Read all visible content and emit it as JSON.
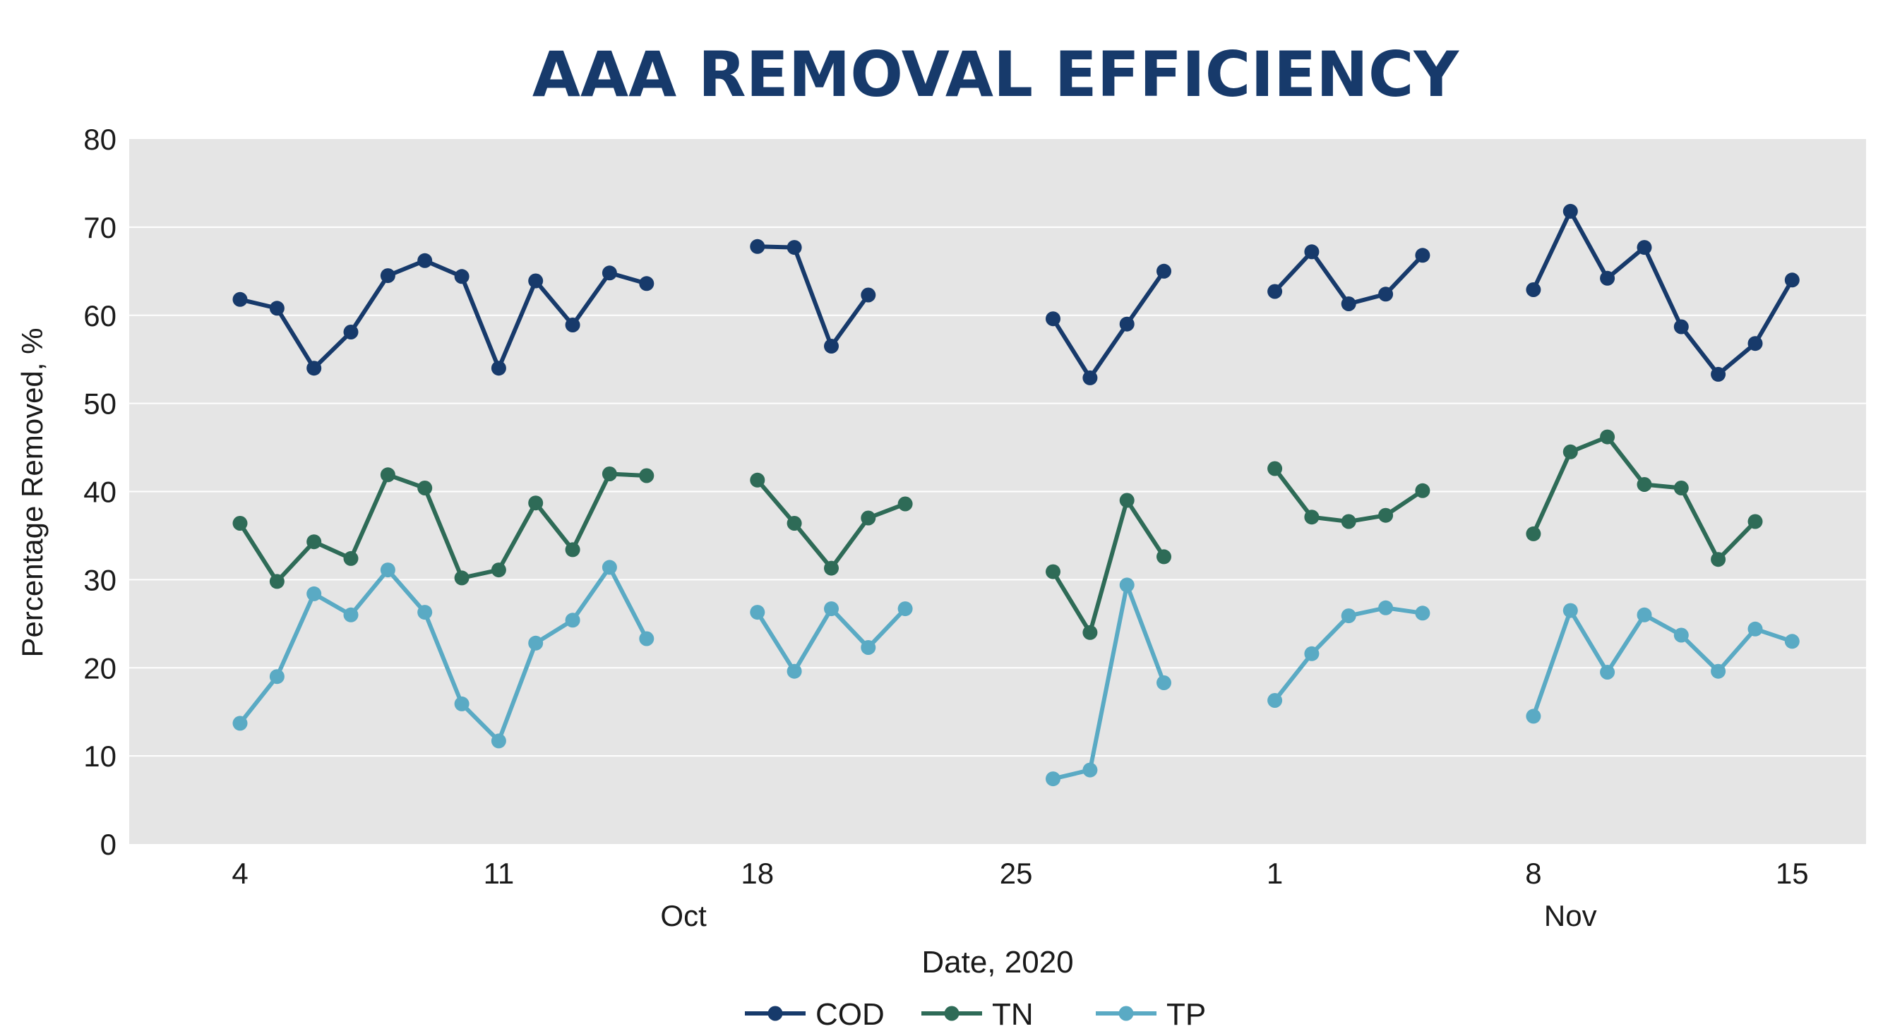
{
  "chart_data": {
    "type": "line",
    "title": "AAA REMOVAL EFFICIENCY",
    "xlabel": "Date, 2020",
    "ylabel": "Percentage Removed, %",
    "ylim": [
      0,
      80
    ],
    "yticks": [
      0,
      10,
      20,
      30,
      40,
      50,
      60,
      70,
      80
    ],
    "xlim": [
      "2020-10-01",
      "2020-11-17"
    ],
    "xticks": [
      {
        "date": "2020-10-04",
        "label": "4"
      },
      {
        "date": "2020-10-11",
        "label": "11"
      },
      {
        "date": "2020-10-18",
        "label": "18"
      },
      {
        "date": "2020-10-25",
        "label": "25"
      },
      {
        "date": "2020-11-01",
        "label": "1"
      },
      {
        "date": "2020-11-08",
        "label": "8"
      },
      {
        "date": "2020-11-15",
        "label": "15"
      }
    ],
    "month_labels": [
      {
        "date": "2020-10-16",
        "label": "Oct"
      },
      {
        "date": "2020-11-09",
        "label": "Nov"
      }
    ],
    "grid": true,
    "legend_position": "bottom",
    "series": [
      {
        "name": "COD",
        "color": "#173a6b",
        "segments": [
          {
            "x": [
              "2020-10-04",
              "2020-10-05",
              "2020-10-06",
              "2020-10-07",
              "2020-10-08",
              "2020-10-09",
              "2020-10-10",
              "2020-10-11",
              "2020-10-12",
              "2020-10-13",
              "2020-10-14",
              "2020-10-15"
            ],
            "y": [
              61.8,
              60.8,
              54.0,
              58.1,
              64.5,
              66.2,
              64.4,
              54.0,
              63.9,
              58.9,
              64.8,
              63.6
            ]
          },
          {
            "x": [
              "2020-10-18",
              "2020-10-19",
              "2020-10-20",
              "2020-10-21"
            ],
            "y": [
              67.8,
              67.7,
              56.5,
              62.3
            ]
          },
          {
            "x": [
              "2020-10-26",
              "2020-10-27",
              "2020-10-28",
              "2020-10-29"
            ],
            "y": [
              59.6,
              52.9,
              59.0,
              65.0
            ]
          },
          {
            "x": [
              "2020-11-01",
              "2020-11-02",
              "2020-11-03",
              "2020-11-04",
              "2020-11-05"
            ],
            "y": [
              62.7,
              67.2,
              61.3,
              62.4,
              66.8
            ]
          },
          {
            "x": [
              "2020-11-08",
              "2020-11-09",
              "2020-11-10",
              "2020-11-11",
              "2020-11-12",
              "2020-11-13",
              "2020-11-14",
              "2020-11-15"
            ],
            "y": [
              62.9,
              71.8,
              64.2,
              67.7,
              58.7,
              53.3,
              56.8,
              64.0
            ]
          }
        ]
      },
      {
        "name": "TN",
        "color": "#2e6b57",
        "segments": [
          {
            "x": [
              "2020-10-04",
              "2020-10-05",
              "2020-10-06",
              "2020-10-07",
              "2020-10-08",
              "2020-10-09",
              "2020-10-10",
              "2020-10-11",
              "2020-10-12",
              "2020-10-13",
              "2020-10-14",
              "2020-10-15"
            ],
            "y": [
              36.4,
              29.8,
              34.3,
              32.4,
              41.9,
              40.4,
              30.2,
              31.1,
              38.7,
              33.4,
              42.0,
              41.8
            ]
          },
          {
            "x": [
              "2020-10-18",
              "2020-10-19",
              "2020-10-20",
              "2020-10-21",
              "2020-10-22"
            ],
            "y": [
              41.3,
              36.4,
              31.3,
              37.0,
              38.6
            ]
          },
          {
            "x": [
              "2020-10-26",
              "2020-10-27",
              "2020-10-28",
              "2020-10-29"
            ],
            "y": [
              30.9,
              24.0,
              39.0,
              32.6
            ]
          },
          {
            "x": [
              "2020-11-01",
              "2020-11-02",
              "2020-11-03",
              "2020-11-04",
              "2020-11-05"
            ],
            "y": [
              42.6,
              37.1,
              36.6,
              37.3,
              40.1
            ]
          },
          {
            "x": [
              "2020-11-08",
              "2020-11-09",
              "2020-11-10",
              "2020-11-11",
              "2020-11-12",
              "2020-11-13",
              "2020-11-14"
            ],
            "y": [
              35.2,
              44.5,
              46.2,
              40.8,
              40.4,
              32.3,
              36.6
            ]
          }
        ]
      },
      {
        "name": "TP",
        "color": "#5aaac4",
        "segments": [
          {
            "x": [
              "2020-10-04",
              "2020-10-05",
              "2020-10-06",
              "2020-10-07",
              "2020-10-08",
              "2020-10-09",
              "2020-10-10",
              "2020-10-11",
              "2020-10-12",
              "2020-10-13",
              "2020-10-14",
              "2020-10-15"
            ],
            "y": [
              13.7,
              19.0,
              28.4,
              26.0,
              31.1,
              26.3,
              15.9,
              11.7,
              22.8,
              25.4,
              31.4,
              23.3
            ]
          },
          {
            "x": [
              "2020-10-18",
              "2020-10-19",
              "2020-10-20",
              "2020-10-21",
              "2020-10-22"
            ],
            "y": [
              26.3,
              19.6,
              26.7,
              22.3,
              26.7
            ]
          },
          {
            "x": [
              "2020-10-26",
              "2020-10-27",
              "2020-10-28",
              "2020-10-29"
            ],
            "y": [
              7.4,
              8.4,
              29.4,
              18.3
            ]
          },
          {
            "x": [
              "2020-11-01",
              "2020-11-02",
              "2020-11-03",
              "2020-11-04",
              "2020-11-05"
            ],
            "y": [
              16.3,
              21.6,
              25.9,
              26.8,
              26.2
            ]
          },
          {
            "x": [
              "2020-11-08",
              "2020-11-09",
              "2020-11-10",
              "2020-11-11",
              "2020-11-12",
              "2020-11-13",
              "2020-11-14",
              "2020-11-15"
            ],
            "y": [
              14.5,
              26.5,
              19.5,
              26.0,
              23.7,
              19.6,
              24.4,
              23.0
            ]
          }
        ]
      }
    ]
  }
}
